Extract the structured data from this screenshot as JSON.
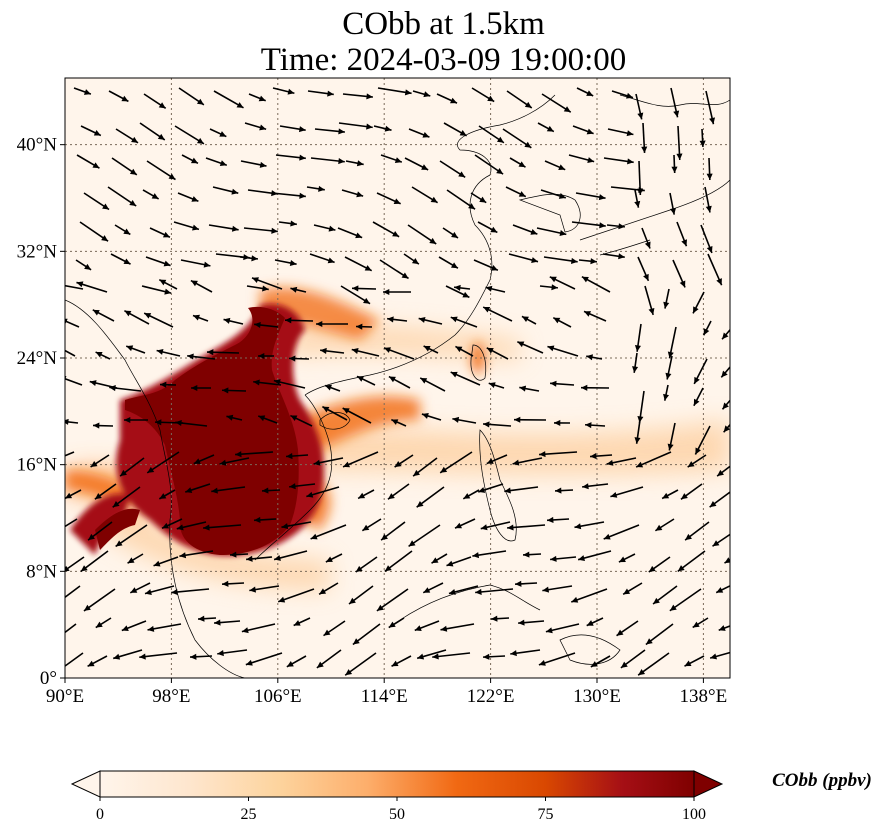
{
  "title": {
    "line1": "CObb at 1.5km",
    "line2": "Time: 2024-03-09 19:00:00"
  },
  "map": {
    "type": "heatmap",
    "variable": "CObb",
    "level": "1.5km",
    "lon_range": [
      90,
      140
    ],
    "lat_range": [
      0,
      45
    ],
    "x_ticks": [
      {
        "value": 90,
        "label": "90°E"
      },
      {
        "value": 98,
        "label": "98°E"
      },
      {
        "value": 106,
        "label": "106°E"
      },
      {
        "value": 114,
        "label": "114°E"
      },
      {
        "value": 122,
        "label": "122°E"
      },
      {
        "value": 130,
        "label": "130°E"
      },
      {
        "value": 138,
        "label": "138°E"
      }
    ],
    "y_ticks": [
      {
        "value": 0,
        "label": "0°"
      },
      {
        "value": 8,
        "label": "8°N"
      },
      {
        "value": 16,
        "label": "16°N"
      },
      {
        "value": 24,
        "label": "24°N"
      },
      {
        "value": 32,
        "label": "32°N"
      },
      {
        "value": 40,
        "label": "40°N"
      }
    ],
    "gridlines": true,
    "overlay": "wind vectors"
  },
  "colorbar": {
    "label": "CObb (ppbv)",
    "range": [
      0,
      100
    ],
    "ticks": [
      {
        "value": 0,
        "label": "0"
      },
      {
        "value": 25,
        "label": "25"
      },
      {
        "value": 50,
        "label": "50"
      },
      {
        "value": 75,
        "label": "75"
      },
      {
        "value": 100,
        "label": "100"
      }
    ],
    "colors": [
      "#fff5eb",
      "#fdd49e",
      "#fdae6b",
      "#f16913",
      "#d94801",
      "#a50f15",
      "#7f0000"
    ],
    "extend": "both"
  }
}
